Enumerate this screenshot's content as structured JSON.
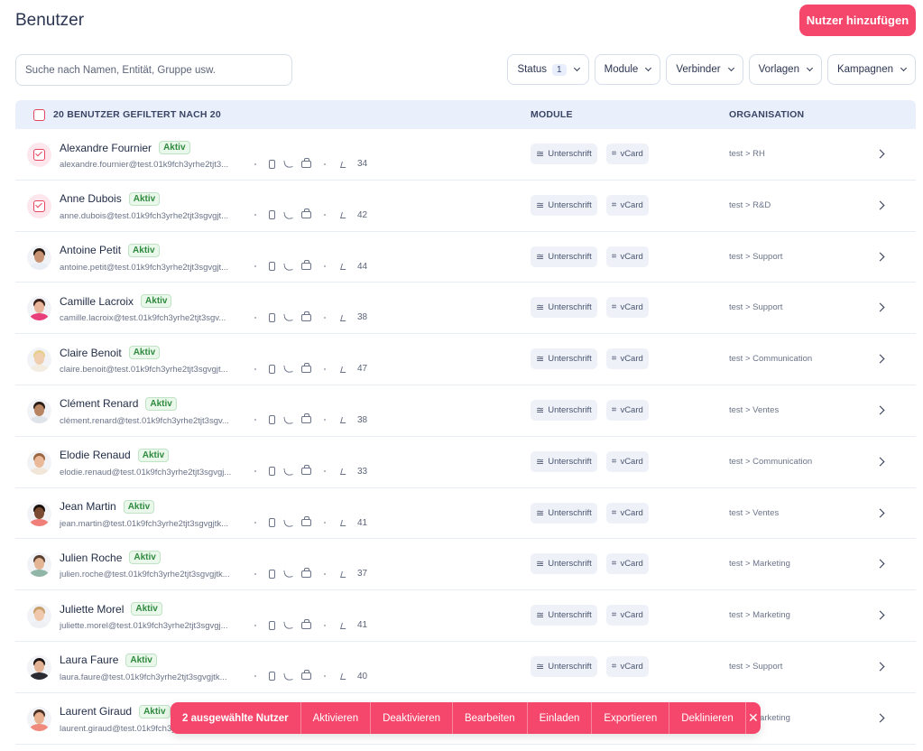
{
  "header": {
    "title": "Benutzer",
    "add_button": "Nutzer hinzufügen"
  },
  "search": {
    "placeholder": "Suche nach Namen, Entität, Gruppe usw."
  },
  "filters": [
    {
      "label": "Status",
      "count": "1"
    },
    {
      "label": "Module"
    },
    {
      "label": "Verbinder"
    },
    {
      "label": "Vorlagen"
    },
    {
      "label": "Kampagnen"
    }
  ],
  "table": {
    "header_count": "20 BENUTZER GEFILTERT NACH 20",
    "col_module": "MODULE",
    "col_org": "ORGANISATION",
    "status_label": "Aktiv",
    "chip_signature": "Unterschrift",
    "chip_vcard": "vCard",
    "rows": [
      {
        "name": "Alexandre Fournier",
        "email": "alexandre.fournier@test.01k9fch3yrhe2tjt3...",
        "score": "34",
        "org": "test > RH",
        "checked": true
      },
      {
        "name": "Anne Dubois",
        "email": "anne.dubois@test.01k9fch3yrhe2tjt3sgvgjt...",
        "score": "42",
        "org": "test > R&D",
        "checked": true
      },
      {
        "name": "Antoine Petit",
        "email": "antoine.petit@test.01k9fch3yrhe2tjt3sgvgjt...",
        "score": "44",
        "org": "test > Support",
        "checked": false,
        "skin": "#c89372",
        "hair": "#2a1c14",
        "shirt": "#e9eef4"
      },
      {
        "name": "Camille Lacroix",
        "email": "camille.lacroix@test.01k9fch3yrhe2tjt3sgv...",
        "score": "38",
        "org": "test > Support",
        "checked": false,
        "skin": "#e8b49a",
        "hair": "#3a211a",
        "shirt": "#e83e7a"
      },
      {
        "name": "Claire Benoit",
        "email": "claire.benoit@test.01k9fch3yrhe2tjt3sgvgjt...",
        "score": "47",
        "org": "test > Communication",
        "checked": false,
        "skin": "#f0cfb0",
        "hair": "#e6cf8e",
        "shirt": "#f3ece0"
      },
      {
        "name": "Clément Renard",
        "email": "clément.renard@test.01k9fch3yrhe2tjt3sgv...",
        "score": "38",
        "org": "test > Ventes",
        "checked": false,
        "skin": "#b98462",
        "hair": "#2c1d16",
        "shirt": "#dfe4ea"
      },
      {
        "name": "Elodie Renaud",
        "email": "elodie.renaud@test.01k9fch3yrhe2tjt3sgvgj...",
        "score": "33",
        "org": "test > Communication",
        "checked": false,
        "skin": "#e9b999",
        "hair": "#9a6640",
        "shirt": "#f2e6d8"
      },
      {
        "name": "Jean Martin",
        "email": "jean.martin@test.01k9fch3yrhe2tjt3sgvgjtk...",
        "score": "41",
        "org": "test > Ventes",
        "checked": false,
        "skin": "#7a4a32",
        "hair": "#1a110c",
        "shirt": "#f07f79"
      },
      {
        "name": "Julien Roche",
        "email": "julien.roche@test.01k9fch3yrhe2tjt3sgvgjtk...",
        "score": "37",
        "org": "test > Marketing",
        "checked": false,
        "skin": "#e3b595",
        "hair": "#5a4030",
        "shirt": "#8fb6a6"
      },
      {
        "name": "Juliette Morel",
        "email": "juliette.morel@test.01k9fch3yrhe2tjt3sgvgj...",
        "score": "41",
        "org": "test > Marketing",
        "checked": false,
        "skin": "#f0c9ad",
        "hair": "#c9a06a",
        "shirt": "#eef0f3"
      },
      {
        "name": "Laura Faure",
        "email": "laura.faure@test.01k9fch3yrhe2tjt3sgvgjtk...",
        "score": "40",
        "org": "test > Support",
        "checked": false,
        "skin": "#e3b193",
        "hair": "#1c1412",
        "shirt": "#2a2a33"
      },
      {
        "name": "Laurent Giraud",
        "email": "laurent.giraud@test.01k9fch3yrhe2tjt3sgvgj...",
        "score": "",
        "org": "test > Marketing",
        "checked": false,
        "skin": "#e8b08e",
        "hair": "#4a3022",
        "shirt": "#f08a7c"
      }
    ]
  },
  "actionbar": {
    "selected": "2 ausgewählte Nutzer",
    "activate": "Aktivieren",
    "deactivate": "Deaktivieren",
    "edit": "Bearbeiten",
    "invite": "Einladen",
    "export": "Exportieren",
    "decline": "Deklinieren",
    "close": "✕"
  },
  "colors": {
    "accent": "#f5476b",
    "active_green": "#2f8a3e",
    "header_bg": "#e9f0fb"
  }
}
